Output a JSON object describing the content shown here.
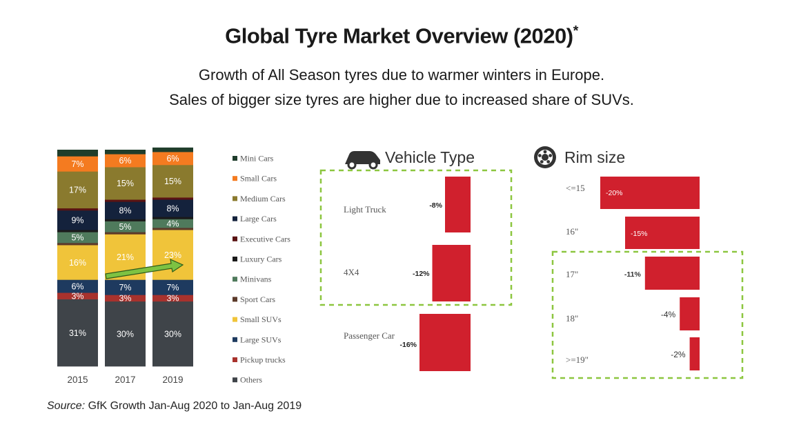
{
  "title": "Global Tyre Market Overview (2020)",
  "title_mark": "*",
  "subtitle_lines": [
    "Growth of All Season tyres due to warmer winters in Europe.",
    "Sales of bigger size tyres are higher due to increased share of SUVs."
  ],
  "source_label": "Source:",
  "source_text": "GfK Growth Jan-Aug 2020 to Jan-Aug 2019",
  "colors": {
    "Mini Cars": "#1f3d2b",
    "Small Cars": "#f47b20",
    "Medium Cars": "#8a7a2e",
    "Large Cars": "#14223c",
    "Executive Cars": "#5a1313",
    "Luxury Cars": "#1a1a1a",
    "Minivans": "#4f7a5c",
    "Sport Cars": "#5c3a2a",
    "Small SUVs": "#f0c43a",
    "Large SUVs": "#1e3a5f",
    "Pickup trucks": "#a8322d",
    "Others": "#3f4449",
    "red_bar": "#d0202d",
    "dash_box": "#8cc63f",
    "arrow": "#7dc242"
  },
  "chart_data": [
    {
      "type": "bar",
      "stacked": true,
      "categories": [
        "2015",
        "2017",
        "2019"
      ],
      "series": [
        {
          "name": "Others",
          "values": [
            31,
            30,
            30
          ]
        },
        {
          "name": "Pickup trucks",
          "values": [
            3,
            3,
            3
          ]
        },
        {
          "name": "Large SUVs",
          "values": [
            6,
            7,
            7
          ]
        },
        {
          "name": "Small SUVs",
          "values": [
            16,
            21,
            23
          ]
        },
        {
          "name": "Sport Cars",
          "values": [
            1,
            1,
            1
          ]
        },
        {
          "name": "Minivans",
          "values": [
            5,
            5,
            4
          ]
        },
        {
          "name": "Luxury Cars",
          "values": [
            1,
            1,
            1
          ]
        },
        {
          "name": "Large Cars",
          "values": [
            9,
            8,
            8
          ]
        },
        {
          "name": "Executive Cars",
          "values": [
            1,
            1,
            1
          ]
        },
        {
          "name": "Medium Cars",
          "values": [
            17,
            15,
            15
          ]
        },
        {
          "name": "Small Cars",
          "values": [
            7,
            6,
            6
          ]
        },
        {
          "name": "Mini Cars",
          "values": [
            3,
            2,
            2
          ]
        }
      ],
      "data_labels": {
        "Others": [
          "31%",
          "30%",
          "30%"
        ],
        "Pickup trucks": [
          "3%",
          "3%",
          "3%"
        ],
        "Large SUVs": [
          "6%",
          "7%",
          "7%"
        ],
        "Small SUVs": [
          "16%",
          "21%",
          "23%"
        ],
        "Minivans": [
          "5%",
          "5%",
          "4%"
        ],
        "Large Cars": [
          "9%",
          "8%",
          "8%"
        ],
        "Medium Cars": [
          "17%",
          "15%",
          "15%"
        ],
        "Small Cars": [
          "7%",
          "6%",
          "6%"
        ]
      },
      "legend": [
        "Mini Cars",
        "Small Cars",
        "Medium Cars",
        "Large Cars",
        "Executive Cars",
        "Luxury Cars",
        "Minivans",
        "Sport Cars",
        "Small SUVs",
        "Large SUVs",
        "Pickup trucks",
        "Others"
      ],
      "legend_position": "right",
      "annotation": "arrow from 2017 to 2019 over Small SUVs"
    },
    {
      "type": "bar",
      "orientation": "horizontal",
      "title": "Vehicle Type",
      "icon": "car-icon",
      "categories": [
        "Light Truck",
        "4X4",
        "Passenger Car"
      ],
      "values": [
        -8,
        -12,
        -16
      ],
      "labels": [
        "-8%",
        "-12%",
        "-16%"
      ],
      "highlighted": [
        "Light Truck",
        "4X4"
      ]
    },
    {
      "type": "bar",
      "orientation": "horizontal",
      "title": "Rim size",
      "icon": "rim-icon",
      "categories": [
        "<=15",
        "16\"",
        "17\"",
        "18\"",
        ">=19\""
      ],
      "values": [
        -20,
        -15,
        -11,
        -4,
        -2
      ],
      "labels": [
        "-20%",
        "-15%",
        "-11%",
        "-4%",
        "-2%"
      ],
      "highlighted": [
        "17\"",
        "18\"",
        ">=19\""
      ]
    }
  ]
}
